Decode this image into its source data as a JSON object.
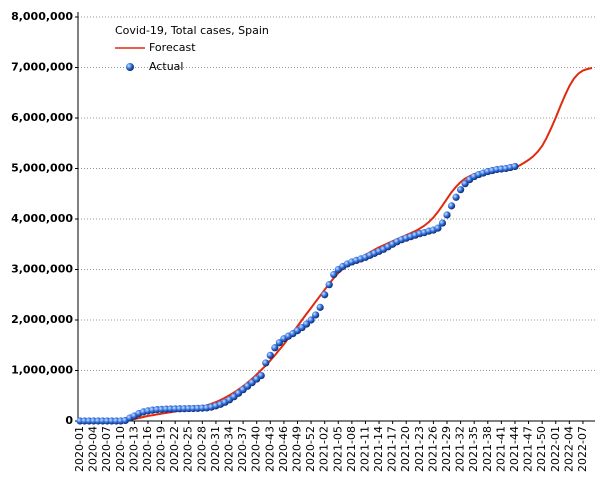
{
  "chart_data": {
    "type": "line",
    "title": "Covid-19, Total cases, Spain",
    "legend": "top-left",
    "grid": true,
    "categories": [
      "2020-01",
      null,
      null,
      "2020-04",
      null,
      null,
      "2020-07",
      null,
      null,
      "2020-10",
      null,
      null,
      "2020-13",
      null,
      null,
      "2020-16",
      null,
      null,
      "2020-19",
      null,
      null,
      "2020-22",
      null,
      null,
      "2020-25",
      null,
      null,
      "2020-28",
      null,
      null,
      "2020-31",
      null,
      null,
      "2020-34",
      null,
      null,
      "2020-37",
      null,
      null,
      "2020-40",
      null,
      null,
      "2020-43",
      null,
      null,
      "2020-46",
      null,
      null,
      "2020-49",
      null,
      null,
      "2020-52",
      null,
      null,
      "2021-02",
      null,
      null,
      "2021-05",
      null,
      null,
      "2021-08",
      null,
      null,
      "2021-11",
      null,
      null,
      "2021-14",
      null,
      null,
      "2021-17",
      null,
      null,
      "2021-20",
      null,
      null,
      "2021-23",
      null,
      null,
      "2021-26",
      null,
      null,
      "2021-29",
      null,
      null,
      "2021-32",
      null,
      null,
      "2021-35",
      null,
      null,
      "2021-38",
      null,
      null,
      "2021-41",
      null,
      null,
      "2021-44",
      null,
      null,
      "2021-47",
      null,
      null,
      "2021-50",
      null,
      null,
      "2022-01",
      null,
      null,
      "2022-04",
      null,
      null,
      "2022-07",
      null,
      null
    ],
    "ylim": [
      0,
      8000000
    ],
    "yticks": [
      {
        "value": 0,
        "label": "0"
      },
      {
        "value": 1000000,
        "label": "1,000,000"
      },
      {
        "value": 2000000,
        "label": "2,000,000"
      },
      {
        "value": 3000000,
        "label": "3,000,000"
      },
      {
        "value": 4000000,
        "label": "4,000,000"
      },
      {
        "value": 5000000,
        "label": "5,000,000"
      },
      {
        "value": 6000000,
        "label": "6,000,000"
      },
      {
        "value": 7000000,
        "label": "7,000,000"
      },
      {
        "value": 8000000,
        "label": "8,000,000"
      }
    ],
    "series": [
      {
        "name": "Forecast",
        "color": "#e02a10",
        "mode": "line",
        "values": [
          0,
          0,
          0,
          0,
          0,
          0,
          0,
          0,
          0,
          0,
          0,
          20000,
          40000,
          60000,
          80000,
          100000,
          115000,
          130000,
          145000,
          160000,
          175000,
          190000,
          205000,
          220000,
          235000,
          250000,
          265000,
          285000,
          310000,
          340000,
          375000,
          415000,
          460000,
          510000,
          565000,
          625000,
          690000,
          760000,
          840000,
          920000,
          1010000,
          1100000,
          1200000,
          1300000,
          1410000,
          1520000,
          1640000,
          1760000,
          1880000,
          2000000,
          2120000,
          2240000,
          2360000,
          2480000,
          2600000,
          2720000,
          2830000,
          2930000,
          3010000,
          3080000,
          3140000,
          3190000,
          3240000,
          3290000,
          3340000,
          3390000,
          3440000,
          3480000,
          3520000,
          3560000,
          3600000,
          3640000,
          3680000,
          3720000,
          3760000,
          3810000,
          3870000,
          3940000,
          4030000,
          4140000,
          4270000,
          4400000,
          4530000,
          4640000,
          4730000,
          4800000,
          4850000,
          4890000,
          4920000,
          4940000,
          4950000,
          4960000,
          4970000,
          4980000,
          4990000,
          5000000,
          5020000,
          5060000,
          5110000,
          5170000,
          5240000,
          5330000,
          5450000,
          5610000,
          5800000,
          6010000,
          6230000,
          6440000,
          6630000,
          6780000,
          6880000,
          6940000,
          6970000,
          6990000
        ]
      },
      {
        "name": "Actual",
        "color": "#2f6fe0",
        "mode": "markers",
        "values": [
          0,
          0,
          0,
          0,
          0,
          0,
          0,
          0,
          0,
          0,
          10000,
          60000,
          100000,
          150000,
          180000,
          200000,
          215000,
          225000,
          230000,
          235000,
          238000,
          240000,
          242000,
          244000,
          246000,
          248000,
          250000,
          255000,
          260000,
          275000,
          300000,
          330000,
          370000,
          420000,
          480000,
          550000,
          620000,
          690000,
          760000,
          830000,
          900000,
          1150000,
          1300000,
          1450000,
          1550000,
          1630000,
          1680000,
          1730000,
          1790000,
          1850000,
          1920000,
          2000000,
          2100000,
          2250000,
          2500000,
          2700000,
          2900000,
          3000000,
          3060000,
          3110000,
          3150000,
          3180000,
          3210000,
          3240000,
          3280000,
          3320000,
          3360000,
          3400000,
          3450000,
          3500000,
          3550000,
          3590000,
          3620000,
          3650000,
          3680000,
          3710000,
          3730000,
          3760000,
          3780000,
          3820000,
          3920000,
          4080000,
          4260000,
          4430000,
          4580000,
          4700000,
          4780000,
          4840000,
          4880000,
          4910000,
          4940000,
          4960000,
          4980000,
          4990000,
          5000000,
          5020000,
          5040000,
          null,
          null,
          null,
          null,
          null,
          null,
          null,
          null,
          null,
          null,
          null,
          null,
          null,
          null,
          null,
          null,
          null
        ]
      }
    ]
  }
}
